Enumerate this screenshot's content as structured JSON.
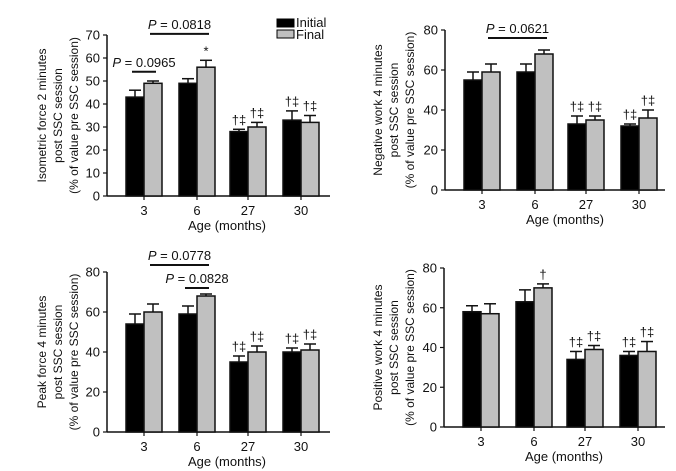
{
  "legend": {
    "entries": [
      "Initial",
      "Final"
    ],
    "placement": "top-right of first panel"
  },
  "colors": {
    "Initial": "#000000",
    "Final": "#c0c0c0",
    "axis": "#111111"
  },
  "chart_data": [
    {
      "type": "bar",
      "title": "",
      "ylabel_lines": [
        "Isometric force 2 minutes",
        "post SSC session",
        "(% of value pre SSC session)"
      ],
      "xlabel": "Age (months)",
      "categories": [
        "3",
        "6",
        "27",
        "30"
      ],
      "ylim": [
        0,
        70
      ],
      "yticks": [
        0,
        10,
        20,
        30,
        40,
        50,
        60,
        70
      ],
      "series": [
        {
          "name": "Initial",
          "values": [
            43,
            49,
            28,
            33
          ],
          "errors": [
            3,
            2,
            1,
            4
          ]
        },
        {
          "name": "Final",
          "values": [
            49,
            56,
            30,
            32
          ],
          "errors": [
            1,
            3,
            2,
            3
          ]
        }
      ],
      "annotations": [
        {
          "category": 1,
          "series": 1,
          "text": "*"
        },
        {
          "category": 2,
          "series": 0,
          "text": "†‡"
        },
        {
          "category": 2,
          "series": 1,
          "text": "†‡"
        },
        {
          "category": 3,
          "series": 0,
          "text": "†‡"
        },
        {
          "category": 3,
          "series": 1,
          "text": "†‡"
        }
      ],
      "brackets": [
        {
          "p_label": "P",
          "p_value": "= 0.0965",
          "from": [
            0,
            0
          ],
          "to": [
            0,
            1
          ],
          "level": 54
        },
        {
          "p_label": "P",
          "p_value": "= 0.0818",
          "from": [
            0,
            1
          ],
          "to": [
            1,
            1
          ],
          "level": 70.5
        }
      ]
    },
    {
      "type": "bar",
      "title": "",
      "ylabel_lines": [
        "Negative work 4 minutes",
        "post SSC session",
        "(% of value pre SSC session)"
      ],
      "xlabel": "Age (months)",
      "categories": [
        "3",
        "6",
        "27",
        "30"
      ],
      "ylim": [
        0,
        80
      ],
      "yticks": [
        0,
        20,
        40,
        60,
        80
      ],
      "series": [
        {
          "name": "Initial",
          "values": [
            55,
            59,
            33,
            32
          ],
          "errors": [
            4,
            4,
            4,
            1
          ]
        },
        {
          "name": "Final",
          "values": [
            59,
            68,
            35,
            36
          ],
          "errors": [
            4,
            2,
            2,
            4
          ]
        }
      ],
      "annotations": [
        {
          "category": 2,
          "series": 0,
          "text": "†‡"
        },
        {
          "category": 2,
          "series": 1,
          "text": "†‡"
        },
        {
          "category": 3,
          "series": 0,
          "text": "†‡"
        },
        {
          "category": 3,
          "series": 1,
          "text": "†‡"
        }
      ],
      "brackets": [
        {
          "p_label": "P",
          "p_value": "= 0.0621",
          "from": [
            0,
            1
          ],
          "to": [
            1,
            1
          ],
          "level": 76
        }
      ]
    },
    {
      "type": "bar",
      "title": "",
      "ylabel_lines": [
        "Peak force 4 minutes",
        "post SSC session",
        "(% of value pre SSC session)"
      ],
      "xlabel": "Age (months)",
      "categories": [
        "3",
        "6",
        "27",
        "30"
      ],
      "ylim": [
        0,
        80
      ],
      "yticks": [
        0,
        20,
        40,
        60,
        80
      ],
      "series": [
        {
          "name": "Initial",
          "values": [
            54,
            59,
            35,
            40
          ],
          "errors": [
            5,
            4,
            3,
            2
          ]
        },
        {
          "name": "Final",
          "values": [
            60,
            68,
            40,
            41
          ],
          "errors": [
            4,
            1,
            3,
            3
          ]
        }
      ],
      "annotations": [
        {
          "category": 2,
          "series": 0,
          "text": "†‡"
        },
        {
          "category": 2,
          "series": 1,
          "text": "†‡"
        },
        {
          "category": 3,
          "series": 0,
          "text": "†‡"
        },
        {
          "category": 3,
          "series": 1,
          "text": "†‡"
        }
      ],
      "brackets": [
        {
          "p_label": "P",
          "p_value": "= 0.0778",
          "from": [
            0,
            1
          ],
          "to": [
            1,
            1
          ],
          "level": 83.5
        },
        {
          "p_label": "P",
          "p_value": "= 0.0828",
          "from": [
            1,
            0
          ],
          "to": [
            1,
            1
          ],
          "level": 72
        }
      ]
    },
    {
      "type": "bar",
      "title": "",
      "ylabel_lines": [
        "Positive work 4 minutes",
        "post SSC session",
        "(% of value pre SSC session)"
      ],
      "xlabel": "Age (months)",
      "categories": [
        "3",
        "6",
        "27",
        "30"
      ],
      "ylim": [
        0,
        80
      ],
      "yticks": [
        0,
        20,
        40,
        60,
        80
      ],
      "series": [
        {
          "name": "Initial",
          "values": [
            58,
            63,
            34,
            36
          ],
          "errors": [
            3,
            6,
            4,
            2
          ]
        },
        {
          "name": "Final",
          "values": [
            57,
            70,
            39,
            38
          ],
          "errors": [
            5,
            2,
            2,
            5
          ]
        }
      ],
      "annotations": [
        {
          "category": 1,
          "series": 1,
          "text": "†"
        },
        {
          "category": 2,
          "series": 0,
          "text": "†‡"
        },
        {
          "category": 2,
          "series": 1,
          "text": "†‡"
        },
        {
          "category": 3,
          "series": 0,
          "text": "†‡"
        },
        {
          "category": 3,
          "series": 1,
          "text": "†‡"
        }
      ],
      "brackets": []
    }
  ]
}
